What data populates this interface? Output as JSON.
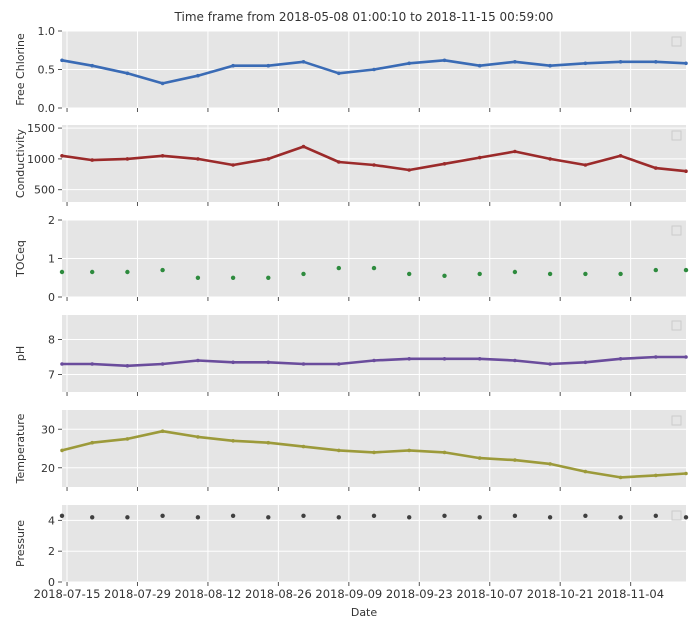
{
  "title": "Time frame from 2018-05-08 01:00:10 to 2018-11-15 00:59:00",
  "xlabel": "Date",
  "x_ticks": [
    "2018-07-15",
    "2018-07-29",
    "2018-08-12",
    "2018-08-26",
    "2018-09-09",
    "2018-09-23",
    "2018-10-07",
    "2018-10-21",
    "2018-11-04"
  ],
  "x_range": [
    "2018-07-14",
    "2018-11-15"
  ],
  "chart_data": [
    {
      "type": "line",
      "ylabel": "Free Chlorine",
      "color": "#3a6bb5",
      "ylim": [
        0,
        1.0
      ],
      "y_ticks": [
        "0.0",
        "0.5",
        "1.0"
      ],
      "x": [
        "2018-07-14",
        "2018-07-20",
        "2018-07-27",
        "2018-08-03",
        "2018-08-10",
        "2018-08-17",
        "2018-08-24",
        "2018-08-31",
        "2018-09-07",
        "2018-09-14",
        "2018-09-21",
        "2018-09-28",
        "2018-10-05",
        "2018-10-12",
        "2018-10-19",
        "2018-10-26",
        "2018-11-02",
        "2018-11-09",
        "2018-11-15"
      ],
      "values": [
        0.62,
        0.55,
        0.45,
        0.32,
        0.42,
        0.55,
        0.55,
        0.6,
        0.45,
        0.5,
        0.58,
        0.62,
        0.55,
        0.6,
        0.55,
        0.58,
        0.6,
        0.6,
        0.58
      ]
    },
    {
      "type": "line",
      "ylabel": "Conductivity",
      "color": "#9b2a2a",
      "ylim": [
        300,
        1550
      ],
      "y_ticks": [
        "500",
        "1000",
        "1500"
      ],
      "x": [
        "2018-07-14",
        "2018-07-20",
        "2018-07-27",
        "2018-08-03",
        "2018-08-10",
        "2018-08-17",
        "2018-08-24",
        "2018-08-31",
        "2018-09-07",
        "2018-09-14",
        "2018-09-21",
        "2018-09-28",
        "2018-10-05",
        "2018-10-12",
        "2018-10-19",
        "2018-10-26",
        "2018-11-02",
        "2018-11-09",
        "2018-11-15"
      ],
      "values": [
        1050,
        980,
        1000,
        1050,
        1000,
        900,
        1000,
        1200,
        950,
        900,
        820,
        920,
        1020,
        1120,
        1000,
        900,
        1050,
        850,
        800
      ]
    },
    {
      "type": "scatter",
      "ylabel": "TOCeq",
      "color": "#2e8b3e",
      "ylim": [
        0,
        2
      ],
      "y_ticks": [
        "0",
        "1",
        "2"
      ],
      "x": [
        "2018-07-14",
        "2018-07-20",
        "2018-07-27",
        "2018-08-03",
        "2018-08-10",
        "2018-08-17",
        "2018-08-24",
        "2018-08-31",
        "2018-09-07",
        "2018-09-14",
        "2018-09-21",
        "2018-09-28",
        "2018-10-05",
        "2018-10-12",
        "2018-10-19",
        "2018-10-26",
        "2018-11-02",
        "2018-11-09",
        "2018-11-15"
      ],
      "values": [
        0.65,
        0.65,
        0.65,
        0.7,
        0.5,
        0.5,
        0.5,
        0.6,
        0.75,
        0.75,
        0.6,
        0.55,
        0.6,
        0.65,
        0.6,
        0.6,
        0.6,
        0.7,
        0.7
      ]
    },
    {
      "type": "line",
      "ylabel": "pH",
      "color": "#6a4c9c",
      "ylim": [
        6.5,
        8.7
      ],
      "y_ticks": [
        "7",
        "8"
      ],
      "x": [
        "2018-07-14",
        "2018-07-20",
        "2018-07-27",
        "2018-08-03",
        "2018-08-10",
        "2018-08-17",
        "2018-08-24",
        "2018-08-31",
        "2018-09-07",
        "2018-09-14",
        "2018-09-21",
        "2018-09-28",
        "2018-10-05",
        "2018-10-12",
        "2018-10-19",
        "2018-10-26",
        "2018-11-02",
        "2018-11-09",
        "2018-11-15"
      ],
      "values": [
        7.3,
        7.3,
        7.25,
        7.3,
        7.4,
        7.35,
        7.35,
        7.3,
        7.3,
        7.4,
        7.45,
        7.45,
        7.45,
        7.4,
        7.3,
        7.35,
        7.45,
        7.5,
        7.5
      ]
    },
    {
      "type": "line",
      "ylabel": "Temperature",
      "color": "#9c9a3a",
      "ylim": [
        15,
        35
      ],
      "y_ticks": [
        "20",
        "30"
      ],
      "x": [
        "2018-07-14",
        "2018-07-20",
        "2018-07-27",
        "2018-08-03",
        "2018-08-10",
        "2018-08-17",
        "2018-08-24",
        "2018-08-31",
        "2018-09-07",
        "2018-09-14",
        "2018-09-21",
        "2018-09-28",
        "2018-10-05",
        "2018-10-12",
        "2018-10-19",
        "2018-10-26",
        "2018-11-02",
        "2018-11-09",
        "2018-11-15"
      ],
      "values": [
        24.5,
        26.5,
        27.5,
        29.5,
        28,
        27,
        26.5,
        25.5,
        24.5,
        24,
        24.5,
        24,
        22.5,
        22,
        21,
        19,
        17.5,
        18,
        18.5
      ]
    },
    {
      "type": "scatter",
      "ylabel": "Pressure",
      "color": "#404040",
      "ylim": [
        0,
        5
      ],
      "y_ticks": [
        "0",
        "2",
        "4"
      ],
      "x": [
        "2018-07-14",
        "2018-07-20",
        "2018-07-27",
        "2018-08-03",
        "2018-08-10",
        "2018-08-17",
        "2018-08-24",
        "2018-08-31",
        "2018-09-07",
        "2018-09-14",
        "2018-09-21",
        "2018-09-28",
        "2018-10-05",
        "2018-10-12",
        "2018-10-19",
        "2018-10-26",
        "2018-11-02",
        "2018-11-09",
        "2018-11-15"
      ],
      "values": [
        4.3,
        4.2,
        4.2,
        4.3,
        4.2,
        4.3,
        4.2,
        4.3,
        4.2,
        4.3,
        4.2,
        4.3,
        4.2,
        4.3,
        4.2,
        4.3,
        4.2,
        4.3,
        4.2
      ]
    }
  ]
}
